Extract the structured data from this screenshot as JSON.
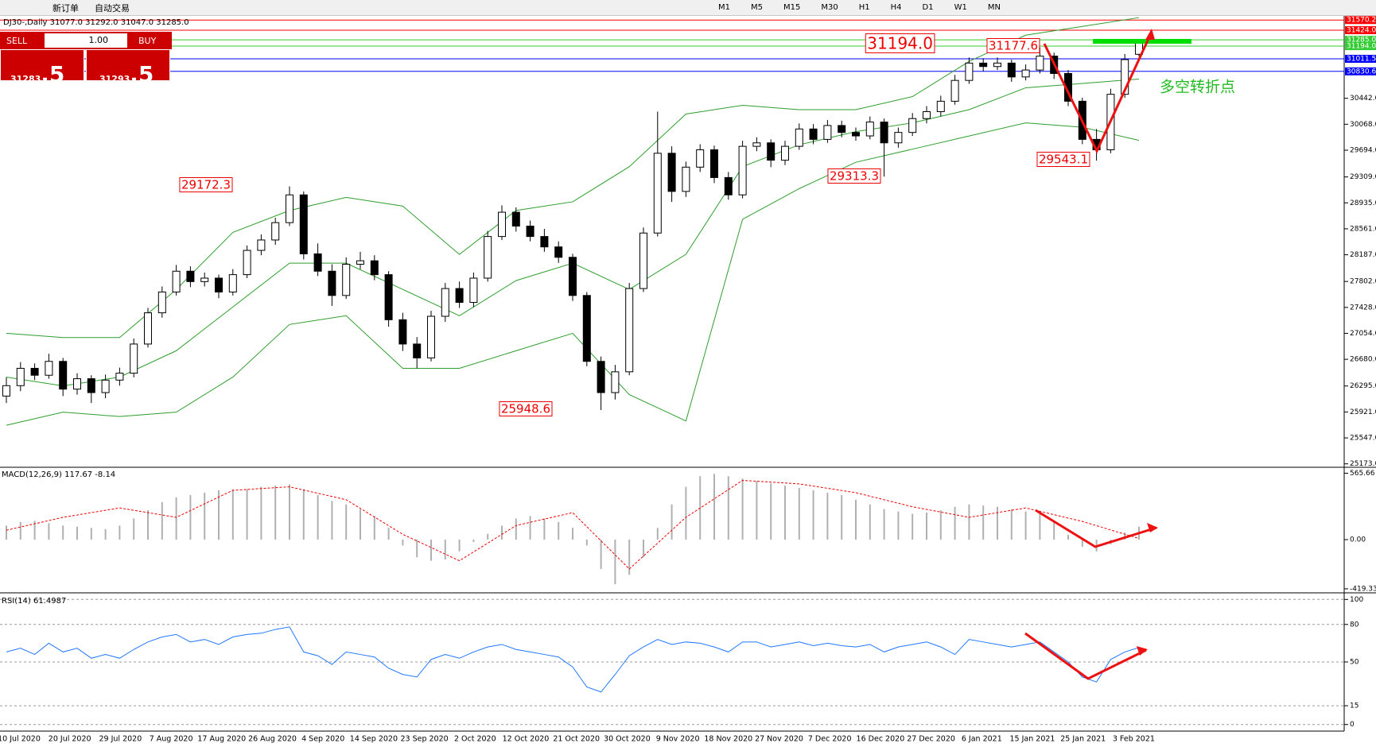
{
  "toolbar": {
    "new_order": "新订单",
    "auto_trading": "自动交易",
    "timeframes": [
      "M1",
      "M5",
      "M15",
      "M30",
      "H1",
      "H4",
      "D1",
      "W1",
      "MN"
    ]
  },
  "trade_panel": {
    "sell": "SELL",
    "lot": "1.00",
    "buy": "BUY",
    "sell_price": "31283",
    "sell_pips": ".5",
    "buy_price": "31293",
    "buy_pips": ".5"
  },
  "chart_data": {
    "type": "candlestick",
    "header": "DJ30-,Daily  31077.0 31292.0 31047.0 31285.0",
    "note": "多空转折点",
    "ylim": [
      25135,
      31630
    ],
    "yticks": [
      {
        "value": 30442,
        "label": "30442.0"
      },
      {
        "value": 30068,
        "label": "30068.0"
      },
      {
        "value": 29694,
        "label": "29694.0"
      },
      {
        "value": 29309,
        "label": "29309.0"
      },
      {
        "value": 28935,
        "label": "28935.0"
      },
      {
        "value": 28561,
        "label": "28561.0"
      },
      {
        "value": 28187,
        "label": "28187.0"
      },
      {
        "value": 27802,
        "label": "27802.0"
      },
      {
        "value": 27428,
        "label": "27428.0"
      },
      {
        "value": 27054,
        "label": "27054.0"
      },
      {
        "value": 26680,
        "label": "26680.0"
      },
      {
        "value": 26295,
        "label": "26295.0"
      },
      {
        "value": 25921,
        "label": "25921.0"
      },
      {
        "value": 25547,
        "label": "25547.0"
      },
      {
        "value": 25173,
        "label": "25173.0"
      }
    ],
    "levels": [
      {
        "value": 31570.2,
        "label": "31570.2",
        "color": "#ff0000"
      },
      {
        "value": 31424,
        "label": "31424.0",
        "color": "#ff0000"
      },
      {
        "value": 31285,
        "label": "31285.0",
        "color": "#33cc33"
      },
      {
        "value": 31194,
        "label": "31194.0",
        "color": "#33cc33"
      },
      {
        "value": 31011.5,
        "label": "31011.5",
        "color": "#0000ff"
      },
      {
        "value": 30830.6,
        "label": "30830.6",
        "color": "#0000ff"
      }
    ],
    "annotations": [
      {
        "value": 29172.3
      },
      {
        "value": 25948.6
      },
      {
        "value": 29313.3
      },
      {
        "value": 29543.1
      },
      {
        "value": 31177.6
      },
      {
        "value": 31194,
        "label": "31194.0"
      }
    ],
    "dates": [
      "10 Jul 2020",
      "20 Jul 2020",
      "29 Jul 2020",
      "7 Aug 2020",
      "17 Aug 2020",
      "26 Aug 2020",
      "4 Sep 2020",
      "14 Sep 2020",
      "23 Sep 2020",
      "2 Oct 2020",
      "12 Oct 2020",
      "21 Oct 2020",
      "30 Oct 2020",
      "9 Nov 2020",
      "18 Nov 2020",
      "27 Nov 2020",
      "7 Dec 2020",
      "16 Dec 2020",
      "27 Dec 2020",
      "6 Jan 2021",
      "15 Jan 2021",
      "25 Jan 2021",
      "3 Feb 2021"
    ],
    "candles": [
      [
        26150,
        26420,
        26050,
        26300
      ],
      [
        26300,
        26640,
        26220,
        26550
      ],
      [
        26550,
        26620,
        26380,
        26450
      ],
      [
        26450,
        26760,
        26400,
        26650
      ],
      [
        26650,
        26700,
        26150,
        26250
      ],
      [
        26250,
        26480,
        26170,
        26400
      ],
      [
        26400,
        26450,
        26050,
        26200
      ],
      [
        26200,
        26460,
        26120,
        26380
      ],
      [
        26380,
        26560,
        26300,
        26480
      ],
      [
        26480,
        26980,
        26420,
        26900
      ],
      [
        26900,
        27420,
        26850,
        27350
      ],
      [
        27350,
        27730,
        27280,
        27650
      ],
      [
        27650,
        28040,
        27600,
        27950
      ],
      [
        27950,
        28020,
        27720,
        27800
      ],
      [
        27800,
        27930,
        27730,
        27850
      ],
      [
        27850,
        27900,
        27560,
        27650
      ],
      [
        27650,
        27980,
        27600,
        27900
      ],
      [
        27900,
        28320,
        27850,
        28250
      ],
      [
        28250,
        28480,
        28180,
        28400
      ],
      [
        28400,
        28720,
        28330,
        28650
      ],
      [
        28650,
        29172.3,
        28600,
        29050
      ],
      [
        29050,
        29100,
        28120,
        28200
      ],
      [
        28200,
        28350,
        27880,
        27950
      ],
      [
        27950,
        28050,
        27450,
        27600
      ],
      [
        27600,
        28150,
        27550,
        28050
      ],
      [
        28050,
        28230,
        27980,
        28100
      ],
      [
        28100,
        28180,
        27820,
        27900
      ],
      [
        27900,
        27950,
        27150,
        27250
      ],
      [
        27250,
        27350,
        26800,
        26900
      ],
      [
        26900,
        27000,
        26550,
        26700
      ],
      [
        26700,
        27380,
        26650,
        27300
      ],
      [
        27300,
        27780,
        27220,
        27700
      ],
      [
        27700,
        27800,
        27420,
        27500
      ],
      [
        27500,
        27930,
        27430,
        27850
      ],
      [
        27850,
        28530,
        27800,
        28450
      ],
      [
        28450,
        28900,
        28400,
        28800
      ],
      [
        28800,
        28870,
        28520,
        28600
      ],
      [
        28600,
        28680,
        28380,
        28450
      ],
      [
        28450,
        28560,
        28230,
        28300
      ],
      [
        28300,
        28380,
        28070,
        28150
      ],
      [
        28150,
        28200,
        27520,
        27600
      ],
      [
        27600,
        27650,
        26580,
        26650
      ],
      [
        26650,
        26720,
        25948.6,
        26200
      ],
      [
        26200,
        26600,
        26100,
        26500
      ],
      [
        26500,
        27780,
        26450,
        27700
      ],
      [
        27700,
        28580,
        27650,
        28500
      ],
      [
        28500,
        30250,
        28450,
        29650
      ],
      [
        29650,
        29750,
        28950,
        29100
      ],
      [
        29100,
        29530,
        29020,
        29450
      ],
      [
        29450,
        29780,
        29380,
        29700
      ],
      [
        29700,
        29760,
        29220,
        29300
      ],
      [
        29300,
        29380,
        28980,
        29050
      ],
      [
        29050,
        29830,
        29000,
        29750
      ],
      [
        29750,
        29880,
        29680,
        29800
      ],
      [
        29800,
        29850,
        29450,
        29550
      ],
      [
        29550,
        29830,
        29480,
        29750
      ],
      [
        29750,
        30080,
        29700,
        30000
      ],
      [
        30000,
        30070,
        29780,
        29850
      ],
      [
        29850,
        30130,
        29800,
        30050
      ],
      [
        30050,
        30120,
        29880,
        29950
      ],
      [
        29950,
        30020,
        29830,
        29900
      ],
      [
        29900,
        30180,
        29850,
        30100
      ],
      [
        30100,
        30150,
        29313.3,
        29800
      ],
      [
        29800,
        30020,
        29730,
        29950
      ],
      [
        29950,
        30230,
        29900,
        30150
      ],
      [
        30150,
        30330,
        30080,
        30250
      ],
      [
        30250,
        30480,
        30180,
        30400
      ],
      [
        30400,
        30780,
        30350,
        30700
      ],
      [
        30700,
        31030,
        30650,
        30950
      ],
      [
        30950,
        31020,
        30830,
        30900
      ],
      [
        30900,
        31030,
        30850,
        30950
      ],
      [
        30950,
        31000,
        30680,
        30750
      ],
      [
        30750,
        30930,
        30700,
        30850
      ],
      [
        30850,
        31177.6,
        30800,
        31050
      ],
      [
        31050,
        31100,
        30720,
        30800
      ],
      [
        30800,
        30850,
        30330,
        30400
      ],
      [
        30400,
        30450,
        29780,
        29850
      ],
      [
        29850,
        30000,
        29543.1,
        29700
      ],
      [
        29700,
        30580,
        29650,
        30500
      ],
      [
        30500,
        31080,
        30450,
        31000
      ],
      [
        31077,
        31292,
        31047,
        31285
      ]
    ],
    "bands_x": [
      0,
      4,
      8,
      12,
      16,
      20,
      24,
      28,
      32,
      36,
      40,
      44,
      48,
      52,
      56,
      60,
      64,
      68,
      72,
      76,
      80
    ],
    "bb_upper": [
      27055,
      26993,
      26993,
      27687,
      28509,
      28825,
      29014,
      28888,
      28192,
      28825,
      28950,
      29457,
      30215,
      30341,
      30278,
      30278,
      30467,
      30973,
      31352,
      31478,
      31605
    ],
    "bb_middle": [
      26424,
      26297,
      26424,
      26803,
      27435,
      28066,
      28066,
      27687,
      27308,
      27814,
      28066,
      27687,
      28193,
      29457,
      29772,
      29962,
      30088,
      30278,
      30594,
      30657,
      30720
    ],
    "bb_lower": [
      25729,
      25918,
      25855,
      25918,
      26424,
      27182,
      27308,
      26550,
      26550,
      26803,
      27055,
      26171,
      25792,
      28698,
      29140,
      29520,
      29709,
      29899,
      30088,
      30025,
      29836
    ],
    "band_color": "#2e9e2e",
    "macd_label": "MACD(12,26,9) 117.67 -8.14",
    "macd_ylim": [
      -440,
      603
    ],
    "macd_yticks": [
      {
        "value": 565.66,
        "label": "565.66"
      },
      {
        "value": 0,
        "label": "0.00"
      },
      {
        "value": -419.33,
        "label": "-419.33"
      }
    ],
    "macd_hist": [
      120,
      150,
      160,
      140,
      120,
      110,
      100,
      90,
      120,
      180,
      250,
      320,
      360,
      380,
      400,
      420,
      430,
      430,
      450,
      460,
      470,
      430,
      380,
      330,
      300,
      260,
      200,
      100,
      -50,
      -150,
      -180,
      -170,
      -100,
      -20,
      50,
      120,
      180,
      200,
      180,
      150,
      100,
      -50,
      -250,
      -380,
      -300,
      -150,
      100,
      300,
      450,
      540,
      560,
      540,
      520,
      500,
      480,
      460,
      440,
      420,
      400,
      380,
      340,
      300,
      260,
      240,
      220,
      230,
      250,
      280,
      300,
      290,
      280,
      260,
      240,
      220,
      150,
      40,
      -60,
      -100,
      -40,
      60,
      110
    ],
    "macd_signal": [
      80,
      190,
      270,
      190,
      420,
      450,
      340,
      45,
      -180,
      120,
      230,
      -250,
      190,
      505,
      475,
      400,
      280,
      190,
      270,
      155,
      10
    ],
    "rsi_label": "RSI(14) 61.4987",
    "rsi_ylim": [
      -4,
      104
    ],
    "rsi_yticks": [
      100,
      80,
      50,
      15,
      0
    ],
    "rsi": [
      58,
      61,
      56,
      65,
      58,
      61,
      53,
      56,
      53,
      60,
      66,
      70,
      72,
      66,
      68,
      64,
      70,
      72,
      73,
      76,
      78,
      58,
      55,
      48,
      58,
      56,
      54,
      45,
      40,
      38,
      52,
      56,
      53,
      58,
      62,
      64,
      60,
      58,
      56,
      54,
      46,
      30,
      26,
      40,
      55,
      62,
      68,
      64,
      66,
      65,
      62,
      58,
      66,
      66,
      62,
      64,
      66,
      63,
      65,
      63,
      62,
      64,
      58,
      62,
      64,
      66,
      62,
      56,
      68,
      66,
      64,
      62,
      64,
      66,
      58,
      50,
      38,
      34,
      52,
      58,
      61.4987
    ],
    "rsi_color": "#1e78ff"
  }
}
